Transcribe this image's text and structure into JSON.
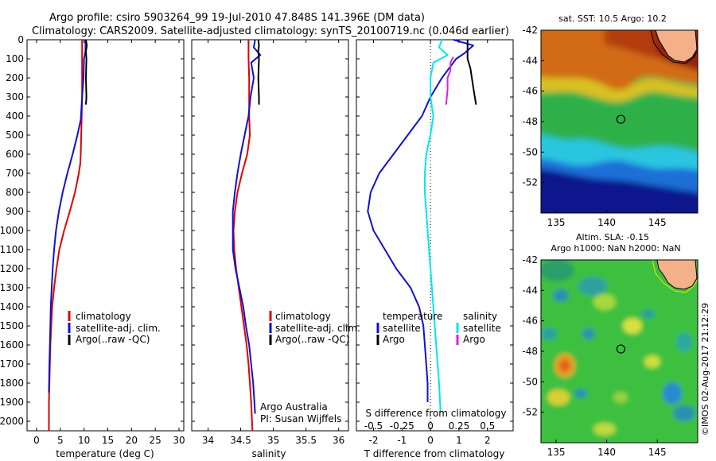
{
  "header": {
    "line1": "Argo profile: csiro 5903264_99 19-Jul-2010 47.848S 141.396E (DM data)",
    "line2": "Climatology: CARS2009. Satellite-adjusted climatology: synTS_20100719.nc (0.046d earlier)"
  },
  "colors": {
    "climatology": "#e00000",
    "satellite": "#1010d0",
    "argo": "#000000",
    "satellite_salinity": "#00e8e8",
    "argo_salinity": "#e020e0"
  },
  "chart_data": [
    {
      "type": "line",
      "name": "temperature-panel",
      "xlabel": "temperature (deg C)",
      "xlim": [
        -2,
        31
      ],
      "ylim": [
        0,
        2050
      ],
      "y_reversed": true,
      "xticks": [
        0,
        5,
        10,
        15,
        20,
        25,
        30
      ],
      "yticks": [
        0,
        100,
        200,
        300,
        400,
        500,
        600,
        700,
        800,
        900,
        1000,
        1100,
        1200,
        1300,
        1400,
        1500,
        1600,
        1700,
        1800,
        1900,
        2000
      ],
      "legend": {
        "placement": "lower-middle",
        "entries": [
          "climatology",
          "satellite-adj. clim.",
          "Argo(..raw -QC)"
        ]
      },
      "series": [
        {
          "key": "climatology",
          "color": "#e00000",
          "x": [
            9.6,
            9.6,
            9.6,
            9.6,
            9.5,
            9.4,
            9.3,
            9.2,
            8.9,
            8.1,
            7.0,
            5.8,
            4.8,
            4.2,
            3.7,
            3.3,
            3.1,
            2.9,
            2.8,
            2.7,
            2.6,
            2.6
          ],
          "y": [
            0,
            100,
            200,
            300,
            400,
            500,
            600,
            650,
            700,
            800,
            900,
            1000,
            1100,
            1200,
            1300,
            1400,
            1500,
            1600,
            1700,
            1800,
            1900,
            2050
          ]
        },
        {
          "key": "satellite",
          "color": "#1010d0",
          "x": [
            10.3,
            10.3,
            10.0,
            9.9,
            9.6,
            9.3,
            8.6,
            7.6,
            6.5,
            5.5,
            4.7,
            4.1,
            3.7,
            3.4,
            3.2,
            3.0,
            2.9,
            2.8,
            2.7,
            2.6
          ],
          "y": [
            0,
            60,
            100,
            200,
            300,
            420,
            500,
            600,
            700,
            800,
            900,
            1000,
            1100,
            1200,
            1300,
            1400,
            1500,
            1600,
            1700,
            1850
          ]
        },
        {
          "key": "argo",
          "color": "#000000",
          "x": [
            10.4,
            10.6,
            10.4,
            10.5,
            10.4,
            10.5,
            10.4
          ],
          "y": [
            0,
            30,
            60,
            100,
            200,
            300,
            340
          ]
        }
      ]
    },
    {
      "type": "line",
      "name": "salinity-panel",
      "xlabel": "salinity",
      "xlim": [
        33.75,
        36.15
      ],
      "ylim": [
        0,
        2050
      ],
      "y_reversed": true,
      "xticks": [
        34,
        34.5,
        35,
        35.5,
        36
      ],
      "legend": {
        "placement": "lower-middle",
        "entries": [
          "climatology",
          "satellite-adj. clim.",
          "Argo(..raw -QC)"
        ]
      },
      "annotation": [
        "Argo Australia",
        "PI: Susan Wijffels"
      ],
      "series": [
        {
          "key": "climatology",
          "color": "#e00000",
          "x": [
            34.62,
            34.62,
            34.63,
            34.63,
            34.63,
            34.64,
            34.6,
            34.52,
            34.45,
            34.41,
            34.39,
            34.4,
            34.43,
            34.47,
            34.51,
            34.55,
            34.59,
            34.62,
            34.64,
            34.66,
            34.68
          ],
          "y": [
            0,
            100,
            200,
            300,
            400,
            500,
            600,
            700,
            800,
            900,
            1000,
            1100,
            1200,
            1300,
            1400,
            1500,
            1600,
            1700,
            1800,
            1900,
            2050
          ]
        },
        {
          "key": "satellite",
          "color": "#1010d0",
          "x": [
            34.72,
            34.7,
            34.8,
            34.66,
            34.7,
            34.65,
            34.62,
            34.56,
            34.5,
            34.45,
            34.41,
            34.38,
            34.38,
            34.42,
            34.48,
            34.54,
            34.58,
            34.63,
            34.66,
            34.69,
            34.71,
            34.72
          ],
          "y": [
            0,
            40,
            80,
            120,
            200,
            300,
            400,
            500,
            600,
            700,
            800,
            900,
            1100,
            1200,
            1300,
            1400,
            1500,
            1600,
            1700,
            1800,
            1900,
            1960
          ]
        },
        {
          "key": "argo",
          "color": "#000000",
          "x": [
            34.77,
            34.78,
            34.77,
            34.78,
            34.77,
            34.78,
            34.78
          ],
          "y": [
            0,
            30,
            60,
            100,
            200,
            300,
            340
          ]
        }
      ]
    },
    {
      "type": "line",
      "name": "difference-panel",
      "xlabel": "T difference from climatology",
      "xlim": [
        -2.6,
        2.9
      ],
      "ylim": [
        0,
        2050
      ],
      "y_reversed": true,
      "xticks": [
        -2,
        -1,
        0,
        1,
        2
      ],
      "top_axis": {
        "label": "S difference from climatology",
        "xlim": [
          -0.65,
          0.725
        ],
        "ticks": [
          -0.5,
          -0.25,
          0,
          0.25,
          0.5
        ],
        "tick_labels": [
          "-0.5",
          "-0.25",
          "0",
          "0.25",
          "0.5"
        ]
      },
      "legend": {
        "placement": "lower-middle",
        "temperature_title": "temperature",
        "salinity_title": "salinity",
        "satellite": "satellite",
        "argo": "Argo"
      },
      "series": [
        {
          "key": "temperature-satellite",
          "color": "#1010d0",
          "x": [
            0.8,
            1.5,
            1.2,
            0.9,
            0.4,
            0.0,
            -0.3,
            -0.8,
            -1.3,
            -1.8,
            -2.1,
            -2.2,
            -2.0,
            -1.6,
            -1.2,
            -0.7,
            -0.4,
            -0.25,
            -0.2,
            -0.15,
            -0.1,
            -0.1
          ],
          "y": [
            0,
            30,
            70,
            100,
            200,
            300,
            400,
            500,
            600,
            700,
            800,
            900,
            1000,
            1100,
            1200,
            1300,
            1400,
            1500,
            1600,
            1700,
            1800,
            1900
          ]
        },
        {
          "key": "temperature-argo",
          "color": "#000000",
          "x": [
            1.3,
            1.3,
            1.3,
            1.4,
            1.5,
            1.6
          ],
          "y": [
            0,
            60,
            100,
            150,
            250,
            340
          ]
        },
        {
          "key": "salinity-satellite",
          "color": "#00e8e8",
          "x": [
            0.4,
            0.3,
            0.6,
            0.1,
            0.0,
            0.0,
            0.1,
            0.0,
            -0.15,
            -0.2,
            -0.2,
            -0.15,
            -0.1,
            -0.05,
            0.0,
            0.05,
            0.1,
            0.15,
            0.2,
            0.25,
            0.3,
            0.35
          ],
          "y": [
            0,
            40,
            80,
            120,
            200,
            300,
            400,
            500,
            600,
            700,
            800,
            900,
            1000,
            1100,
            1200,
            1300,
            1400,
            1500,
            1600,
            1700,
            1800,
            1950
          ]
        },
        {
          "key": "salinity-argo",
          "color": "#e020e0",
          "x": [
            0.8,
            0.7,
            0.7,
            0.6,
            0.6,
            0.55
          ],
          "y": [
            90,
            120,
            160,
            200,
            260,
            340
          ]
        }
      ]
    },
    {
      "type": "heatmap",
      "name": "sst-map",
      "title": "sat. SST: 10.5 Argo: 10.2",
      "xlim": [
        133.5,
        149
      ],
      "ylim": [
        -54,
        -42
      ],
      "xticks": [
        135,
        140,
        145
      ],
      "yticks": [
        -42,
        -44,
        -46,
        -48,
        -50,
        -52
      ],
      "ytick_labels": [
        "-42",
        "-44",
        "-46",
        "-48",
        "-50",
        "-52"
      ],
      "argo_marker": {
        "lon": 141.396,
        "lat": -47.848
      },
      "bands": [
        {
          "from_lat": -42,
          "to_lat": -45.5,
          "color": "#d26a14"
        },
        {
          "from_lat": -45.5,
          "to_lat": -48.8,
          "color": "#2fb04a"
        },
        {
          "from_lat": -48.8,
          "to_lat": -50.6,
          "color": "#2bc6e0"
        },
        {
          "from_lat": -50.6,
          "to_lat": -51.8,
          "color": "#1a6fd8"
        },
        {
          "from_lat": -51.8,
          "to_lat": -54,
          "color": "#08148c"
        }
      ]
    },
    {
      "type": "heatmap",
      "name": "sla-map",
      "title": "Altim. SLA: -0.15",
      "subtitle": "Argo h1000: NaN h2000: NaN",
      "xlim": [
        133.5,
        149
      ],
      "ylim": [
        -54,
        -42
      ],
      "xticks": [
        135,
        140,
        145
      ],
      "yticks": [
        -42,
        -44,
        -46,
        -48,
        -50,
        -52
      ],
      "ytick_labels": [
        "-42",
        "-44",
        "-46",
        "-48",
        "-50",
        "-52"
      ],
      "argo_marker": {
        "lon": 141.396,
        "lat": -47.848
      },
      "base_color": "#3ec040"
    }
  ],
  "credit": "©IMOS 02-Aug-2017 21:12:29"
}
